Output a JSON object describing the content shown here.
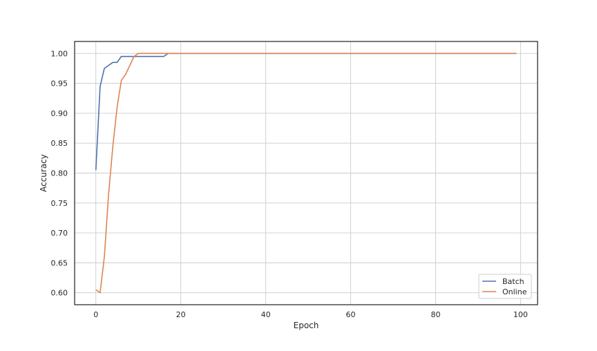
{
  "chart_data": {
    "type": "line",
    "title": "",
    "xlabel": "Epoch",
    "ylabel": "Accuracy",
    "xlim": [
      -5,
      104
    ],
    "ylim": [
      0.58,
      1.02
    ],
    "xticks": [
      0,
      20,
      40,
      60,
      80,
      100
    ],
    "yticks": [
      0.6,
      0.65,
      0.7,
      0.75,
      0.8,
      0.85,
      0.9,
      0.95,
      1.0
    ],
    "grid": true,
    "legend_position": "lower-right",
    "series": [
      {
        "name": "Batch",
        "color": "#4c72b0",
        "points": [
          [
            0,
            0.805
          ],
          [
            1,
            0.945
          ],
          [
            2,
            0.975
          ],
          [
            3,
            0.98
          ],
          [
            4,
            0.985
          ],
          [
            5,
            0.985
          ],
          [
            6,
            0.995
          ],
          [
            16,
            0.995
          ],
          [
            17,
            1.0
          ],
          [
            99,
            1.0
          ]
        ]
      },
      {
        "name": "Online",
        "color": "#dd8452",
        "points": [
          [
            0,
            0.605
          ],
          [
            1,
            0.6
          ],
          [
            2,
            0.66
          ],
          [
            3,
            0.765
          ],
          [
            4,
            0.845
          ],
          [
            5,
            0.91
          ],
          [
            6,
            0.955
          ],
          [
            7,
            0.965
          ],
          [
            8,
            0.98
          ],
          [
            9,
            0.995
          ],
          [
            10,
            1.0
          ],
          [
            99,
            1.0
          ]
        ]
      }
    ]
  }
}
